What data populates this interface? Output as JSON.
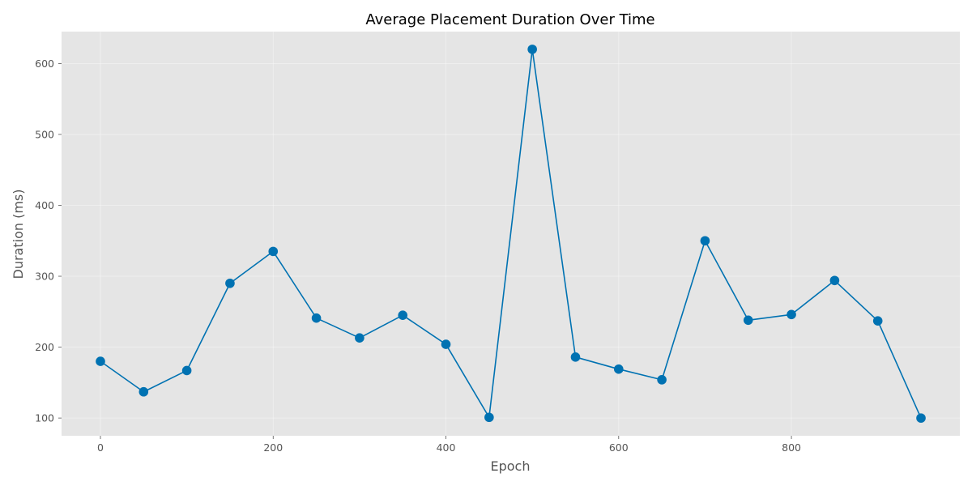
{
  "chart_data": {
    "type": "line",
    "title": "Average Placement Duration Over Time",
    "xlabel": "Epoch",
    "ylabel": "Duration (ms)",
    "xlim": [
      -45,
      995
    ],
    "ylim": [
      75,
      645
    ],
    "xticks": [
      0,
      200,
      400,
      600,
      800
    ],
    "yticks": [
      100,
      200,
      300,
      400,
      500,
      600
    ],
    "grid": true,
    "series": [
      {
        "color": "#0072B2",
        "x": [
          0,
          50,
          100,
          150,
          200,
          250,
          300,
          350,
          400,
          450,
          500,
          550,
          600,
          650,
          700,
          750,
          800,
          850,
          900,
          950
        ],
        "y": [
          180,
          137,
          167,
          290,
          335,
          241,
          213,
          245,
          204,
          101,
          620,
          186,
          169,
          154,
          350,
          238,
          246,
          294,
          237,
          100
        ]
      }
    ]
  },
  "colors": {
    "plot_background": "#E5E5E5",
    "grid": "#FFFFFF",
    "line": "#0072B2"
  }
}
